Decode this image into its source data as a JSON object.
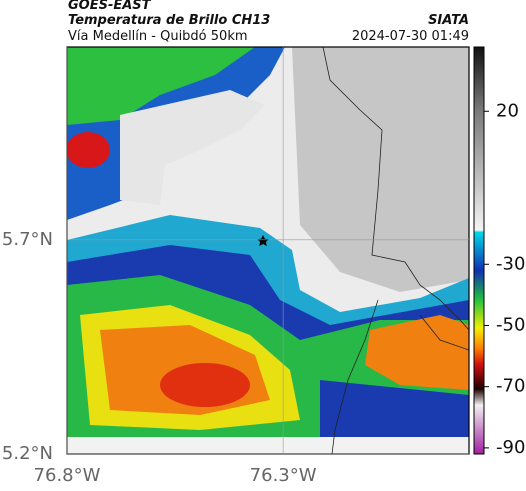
{
  "header": {
    "platform": "GOES-EAST",
    "product": "Temperatura de Brillo CH13",
    "region": "Vía Medellín - Quibdó 50km",
    "source": "SIATA",
    "timestamp": "2024-07-30 01:49"
  },
  "map": {
    "xlim": [
      -76.8,
      -75.87
    ],
    "ylim": [
      5.2,
      6.15
    ],
    "xticks": [
      {
        "value": -76.8,
        "label": "76.8°W"
      },
      {
        "value": -76.3,
        "label": "76.3°W"
      }
    ],
    "yticks": [
      {
        "value": 5.7,
        "label": "5.7°N"
      },
      {
        "value": 5.2,
        "label": "5.2°N"
      }
    ]
  },
  "colorbar": {
    "lim": [
      -92,
      41
    ],
    "ticks": [
      20,
      -30,
      -50,
      -70,
      -90
    ]
  }
}
